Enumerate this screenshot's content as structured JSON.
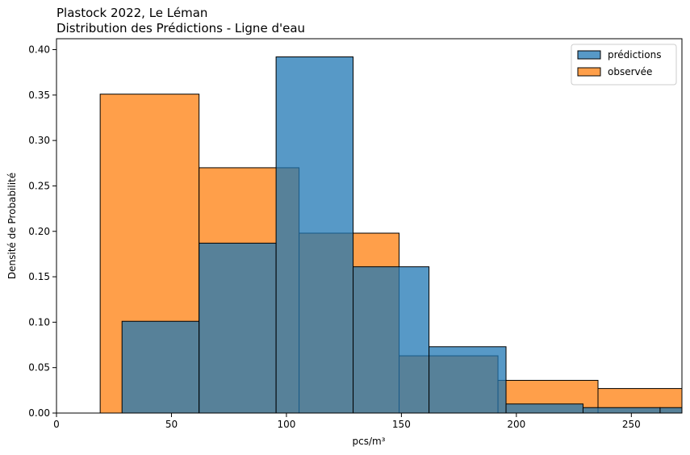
{
  "chart_data": {
    "type": "histogram",
    "title_line1": "Plastock 2022, Le Léman",
    "title_line2": "Distribution des Prédictions - Ligne d'eau",
    "xlabel": "pcs/m³",
    "ylabel": "Densité de Probabilité",
    "xlim": [
      0,
      272
    ],
    "ylim": [
      0,
      0.412
    ],
    "x_ticks": [
      0,
      50,
      100,
      150,
      200,
      250
    ],
    "y_ticks": [
      0.0,
      0.05,
      0.1,
      0.15,
      0.2,
      0.25,
      0.3,
      0.35,
      0.4
    ],
    "x_tick_labels": [
      "0",
      "50",
      "100",
      "150",
      "200",
      "250"
    ],
    "y_tick_labels": [
      "0.00",
      "0.05",
      "0.10",
      "0.15",
      "0.20",
      "0.25",
      "0.30",
      "0.35",
      "0.40"
    ],
    "legend_position": "top-right",
    "series": [
      {
        "name": "prédictions",
        "color": "#1f77b4",
        "bins": [
          {
            "x0": 28.5,
            "x1": 62,
            "value": 0.101
          },
          {
            "x0": 62,
            "x1": 95.5,
            "value": 0.187
          },
          {
            "x0": 95.5,
            "x1": 129,
            "value": 0.392
          },
          {
            "x0": 129,
            "x1": 162,
            "value": 0.161
          },
          {
            "x0": 162,
            "x1": 195.5,
            "value": 0.073
          },
          {
            "x0": 195.5,
            "x1": 229,
            "value": 0.01
          },
          {
            "x0": 229,
            "x1": 262.5,
            "value": 0.006
          },
          {
            "x0": 262.5,
            "x1": 296,
            "value": 0.006
          }
        ]
      },
      {
        "name": "observée",
        "color": "#ff7f0e",
        "bins": [
          {
            "x0": 19,
            "x1": 62,
            "value": 0.351
          },
          {
            "x0": 62,
            "x1": 105.5,
            "value": 0.27
          },
          {
            "x0": 105.5,
            "x1": 149,
            "value": 0.198
          },
          {
            "x0": 149,
            "x1": 192,
            "value": 0.063
          },
          {
            "x0": 192,
            "x1": 235.5,
            "value": 0.036
          },
          {
            "x0": 235.5,
            "x1": 279,
            "value": 0.027
          }
        ]
      }
    ]
  }
}
